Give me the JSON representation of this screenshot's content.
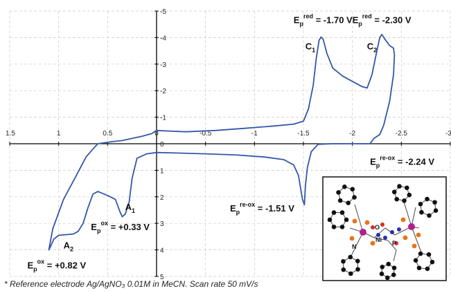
{
  "chart_data": {
    "type": "line",
    "x_reversed": true,
    "y_reversed": true,
    "xlim": [
      1.5,
      -3
    ],
    "ylim": [
      -5,
      5
    ],
    "x_ticks": [
      {
        "value": 1.5,
        "label": "1.5"
      },
      {
        "value": 1,
        "label": "1"
      },
      {
        "value": 0.5,
        "label": "0.5"
      },
      {
        "value": 0,
        "label": "0"
      },
      {
        "value": -0.5,
        "label": "-0.5"
      },
      {
        "value": -1,
        "label": "-1"
      },
      {
        "value": -1.5,
        "label": "-1.5"
      },
      {
        "value": -2,
        "label": "-2"
      },
      {
        "value": -2.5,
        "label": "-2.5"
      },
      {
        "value": -3,
        "label": "-3"
      }
    ],
    "y_ticks": [
      {
        "value": -5,
        "label": "-5"
      },
      {
        "value": -4,
        "label": "-4"
      },
      {
        "value": -3,
        "label": "-3"
      },
      {
        "value": -2,
        "label": "-2"
      },
      {
        "value": -1,
        "label": "-1"
      },
      {
        "value": 0,
        "label": "0"
      },
      {
        "value": 1,
        "label": "1"
      },
      {
        "value": 2,
        "label": "2"
      },
      {
        "value": 3,
        "label": "3"
      },
      {
        "value": 4,
        "label": "4"
      },
      {
        "value": 5,
        "label": "5"
      }
    ],
    "grid": true,
    "series": [
      {
        "color": "#3355aa",
        "points": [
          [
            0.0,
            -0.5
          ],
          [
            -0.3,
            -0.45
          ],
          [
            -0.6,
            -0.5
          ],
          [
            -0.9,
            -0.58
          ],
          [
            -1.2,
            -0.67
          ],
          [
            -1.4,
            -0.74
          ],
          [
            -1.5,
            -0.85
          ],
          [
            -1.55,
            -1.3
          ],
          [
            -1.6,
            -2.2
          ],
          [
            -1.63,
            -3.2
          ],
          [
            -1.66,
            -3.9
          ],
          [
            -1.68,
            -4.02
          ],
          [
            -1.7,
            -3.95
          ],
          [
            -1.74,
            -3.4
          ],
          [
            -1.8,
            -2.85
          ],
          [
            -1.9,
            -2.55
          ],
          [
            -2.0,
            -2.35
          ],
          [
            -2.1,
            -2.15
          ],
          [
            -2.15,
            -2.1
          ],
          [
            -2.2,
            -2.6
          ],
          [
            -2.25,
            -3.5
          ],
          [
            -2.28,
            -4.0
          ],
          [
            -2.3,
            -4.12
          ],
          [
            -2.33,
            -3.95
          ],
          [
            -2.38,
            -3.7
          ],
          [
            -2.42,
            -3.6
          ],
          [
            -2.43,
            -3.35
          ],
          [
            -2.42,
            -2.6
          ],
          [
            -2.38,
            -1.6
          ],
          [
            -2.32,
            -0.7
          ],
          [
            -2.28,
            -0.35
          ],
          [
            -2.22,
            -0.2
          ],
          [
            -2.18,
            0.0
          ],
          [
            -2.0,
            0.0
          ],
          [
            -1.8,
            0.0
          ],
          [
            -1.65,
            0.02
          ],
          [
            -1.58,
            0.3
          ],
          [
            -1.54,
            0.9
          ],
          [
            -1.52,
            1.6
          ],
          [
            -1.51,
            2.3
          ],
          [
            -1.49,
            2.1
          ],
          [
            -1.45,
            1.2
          ],
          [
            -1.4,
            0.8
          ],
          [
            -1.3,
            0.6
          ],
          [
            -1.1,
            0.5
          ],
          [
            -0.8,
            0.42
          ],
          [
            -0.5,
            0.38
          ],
          [
            -0.2,
            0.35
          ],
          [
            0.0,
            0.33
          ],
          [
            0.1,
            0.38
          ],
          [
            0.2,
            0.55
          ],
          [
            0.25,
            1.3
          ],
          [
            0.28,
            2.2
          ],
          [
            0.32,
            2.65
          ],
          [
            0.35,
            2.75
          ],
          [
            0.37,
            2.6
          ],
          [
            0.42,
            2.1
          ],
          [
            0.5,
            1.95
          ],
          [
            0.6,
            1.8
          ],
          [
            0.65,
            1.9
          ],
          [
            0.7,
            2.4
          ],
          [
            0.75,
            3.0
          ],
          [
            0.8,
            3.3
          ],
          [
            0.85,
            3.4
          ],
          [
            1.0,
            3.45
          ],
          [
            1.05,
            3.6
          ],
          [
            1.08,
            3.85
          ],
          [
            1.1,
            4.0
          ],
          [
            1.06,
            3.2
          ],
          [
            0.95,
            2.1
          ],
          [
            0.82,
            1.2
          ],
          [
            0.72,
            0.5
          ],
          [
            0.65,
            0.2
          ],
          [
            0.6,
            0.0
          ],
          [
            0.45,
            -0.08
          ],
          [
            0.35,
            -0.12
          ],
          [
            0.25,
            -0.2
          ],
          [
            0.15,
            -0.28
          ],
          [
            0.05,
            -0.38
          ],
          [
            0.0,
            -0.5
          ]
        ]
      }
    ],
    "annotations": [
      {
        "base": "E",
        "sub": "p",
        "sup": "red",
        "tail": " = -1.70 V",
        "x": -1.7,
        "y": -4.55,
        "anchor": "middle"
      },
      {
        "base": "E",
        "sub": "p",
        "sup": "red",
        "tail": " = -2.30 V",
        "x": -2.3,
        "y": -4.55,
        "anchor": "middle"
      },
      {
        "base": "C",
        "sub": "1",
        "sup": "",
        "tail": "",
        "x": -1.57,
        "y": -3.55,
        "anchor": "middle"
      },
      {
        "base": "C",
        "sub": "2",
        "sup": "",
        "tail": "",
        "x": -2.2,
        "y": -3.55,
        "anchor": "middle"
      },
      {
        "base": "E",
        "sub": "p",
        "sup": "re-ox",
        "tail": " = -2.24 V",
        "x": -2.18,
        "y": 0.8,
        "anchor": "start"
      },
      {
        "base": "E",
        "sub": "p",
        "sup": "re-ox",
        "tail": " = -1.51 V",
        "x": -0.75,
        "y": 2.55,
        "anchor": "start"
      },
      {
        "base": "A",
        "sub": "1",
        "sup": "",
        "tail": "",
        "x": 0.27,
        "y": 2.5,
        "anchor": "middle"
      },
      {
        "base": "A",
        "sub": "2",
        "sup": "",
        "tail": "",
        "x": 0.9,
        "y": 3.95,
        "anchor": "middle"
      },
      {
        "base": "E",
        "sub": "p",
        "sup": "ox",
        "tail": " = +0.33 V",
        "x": 0.67,
        "y": 3.25,
        "anchor": "start"
      },
      {
        "base": "E",
        "sub": "p",
        "sup": "ox",
        "tail": " = +0.82 V",
        "x": 1.32,
        "y": 4.7,
        "anchor": "start"
      }
    ]
  },
  "inset": {
    "labels": {
      "ni": "Ni",
      "n": "N",
      "o": "O",
      "p": "P"
    }
  },
  "footnote": "* Reference electrode Ag/AgNO₃ 0.01M in MeCN. Scan rate 50 mV/s"
}
